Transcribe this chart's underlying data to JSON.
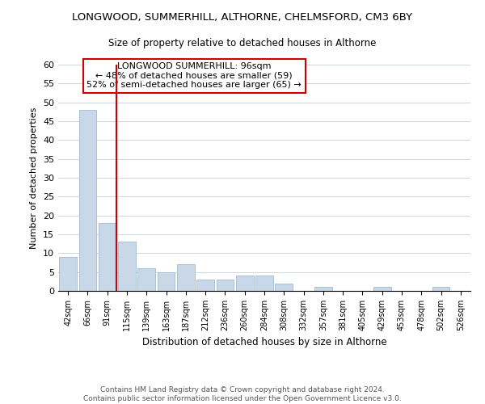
{
  "title": "LONGWOOD, SUMMERHILL, ALTHORNE, CHELMSFORD, CM3 6BY",
  "subtitle": "Size of property relative to detached houses in Althorne",
  "xlabel": "Distribution of detached houses by size in Althorne",
  "ylabel": "Number of detached properties",
  "bar_color": "#c8d8e8",
  "bar_edge_color": "#aac0d4",
  "bin_labels": [
    "42sqm",
    "66sqm",
    "91sqm",
    "115sqm",
    "139sqm",
    "163sqm",
    "187sqm",
    "212sqm",
    "236sqm",
    "260sqm",
    "284sqm",
    "308sqm",
    "332sqm",
    "357sqm",
    "381sqm",
    "405sqm",
    "429sqm",
    "453sqm",
    "478sqm",
    "502sqm",
    "526sqm"
  ],
  "bar_heights": [
    9,
    48,
    18,
    13,
    6,
    5,
    7,
    3,
    3,
    4,
    4,
    2,
    0,
    1,
    0,
    0,
    1,
    0,
    0,
    1,
    0
  ],
  "vline_color": "#cc0000",
  "ylim": [
    0,
    60
  ],
  "yticks": [
    0,
    5,
    10,
    15,
    20,
    25,
    30,
    35,
    40,
    45,
    50,
    55,
    60
  ],
  "annotation_text": "LONGWOOD SUMMERHILL: 96sqm\n← 48% of detached houses are smaller (59)\n52% of semi-detached houses are larger (65) →",
  "annotation_box_color": "#ffffff",
  "annotation_box_edge": "#cc0000",
  "footer_line1": "Contains HM Land Registry data © Crown copyright and database right 2024.",
  "footer_line2": "Contains public sector information licensed under the Open Government Licence v3.0.",
  "grid_color": "#d0d8e0",
  "background_color": "#ffffff"
}
